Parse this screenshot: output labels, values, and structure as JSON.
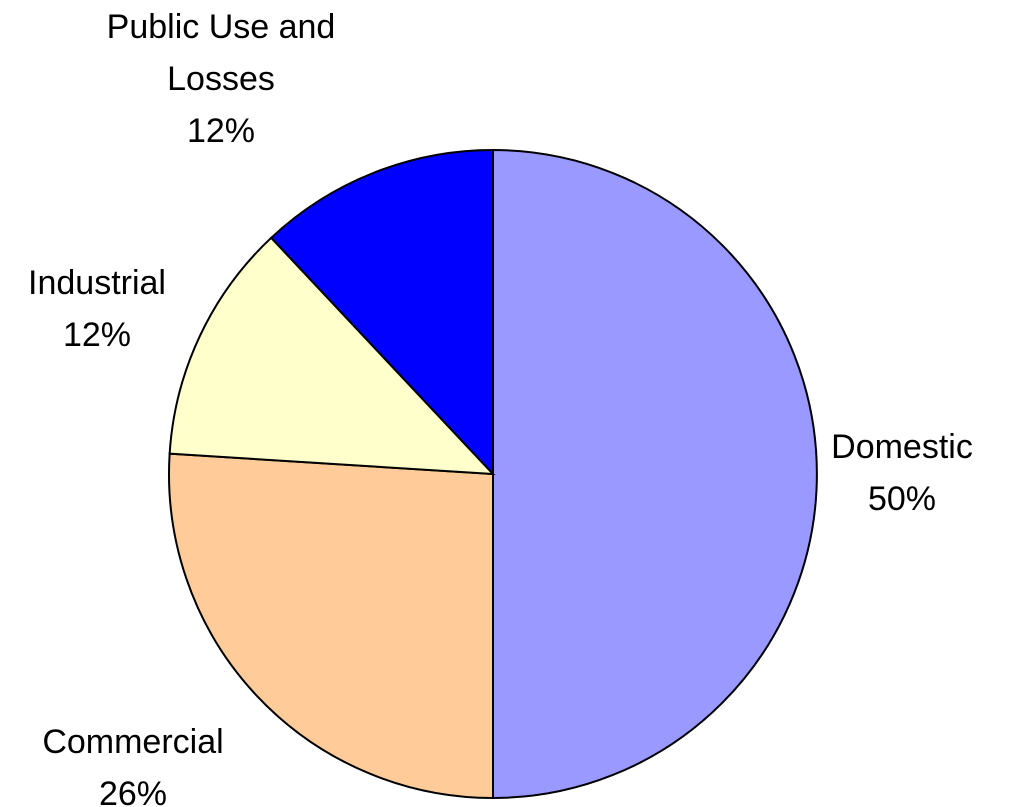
{
  "chart_data": {
    "type": "pie",
    "categories": [
      "Domestic",
      "Commercial",
      "Industrial",
      "Public Use and Losses"
    ],
    "values": [
      50,
      26,
      12,
      12
    ],
    "value_labels": [
      "50%",
      "26%",
      "12%",
      "12%"
    ],
    "colors": [
      "#9999ff",
      "#ffcc99",
      "#ffffcc",
      "#0000ff"
    ]
  }
}
